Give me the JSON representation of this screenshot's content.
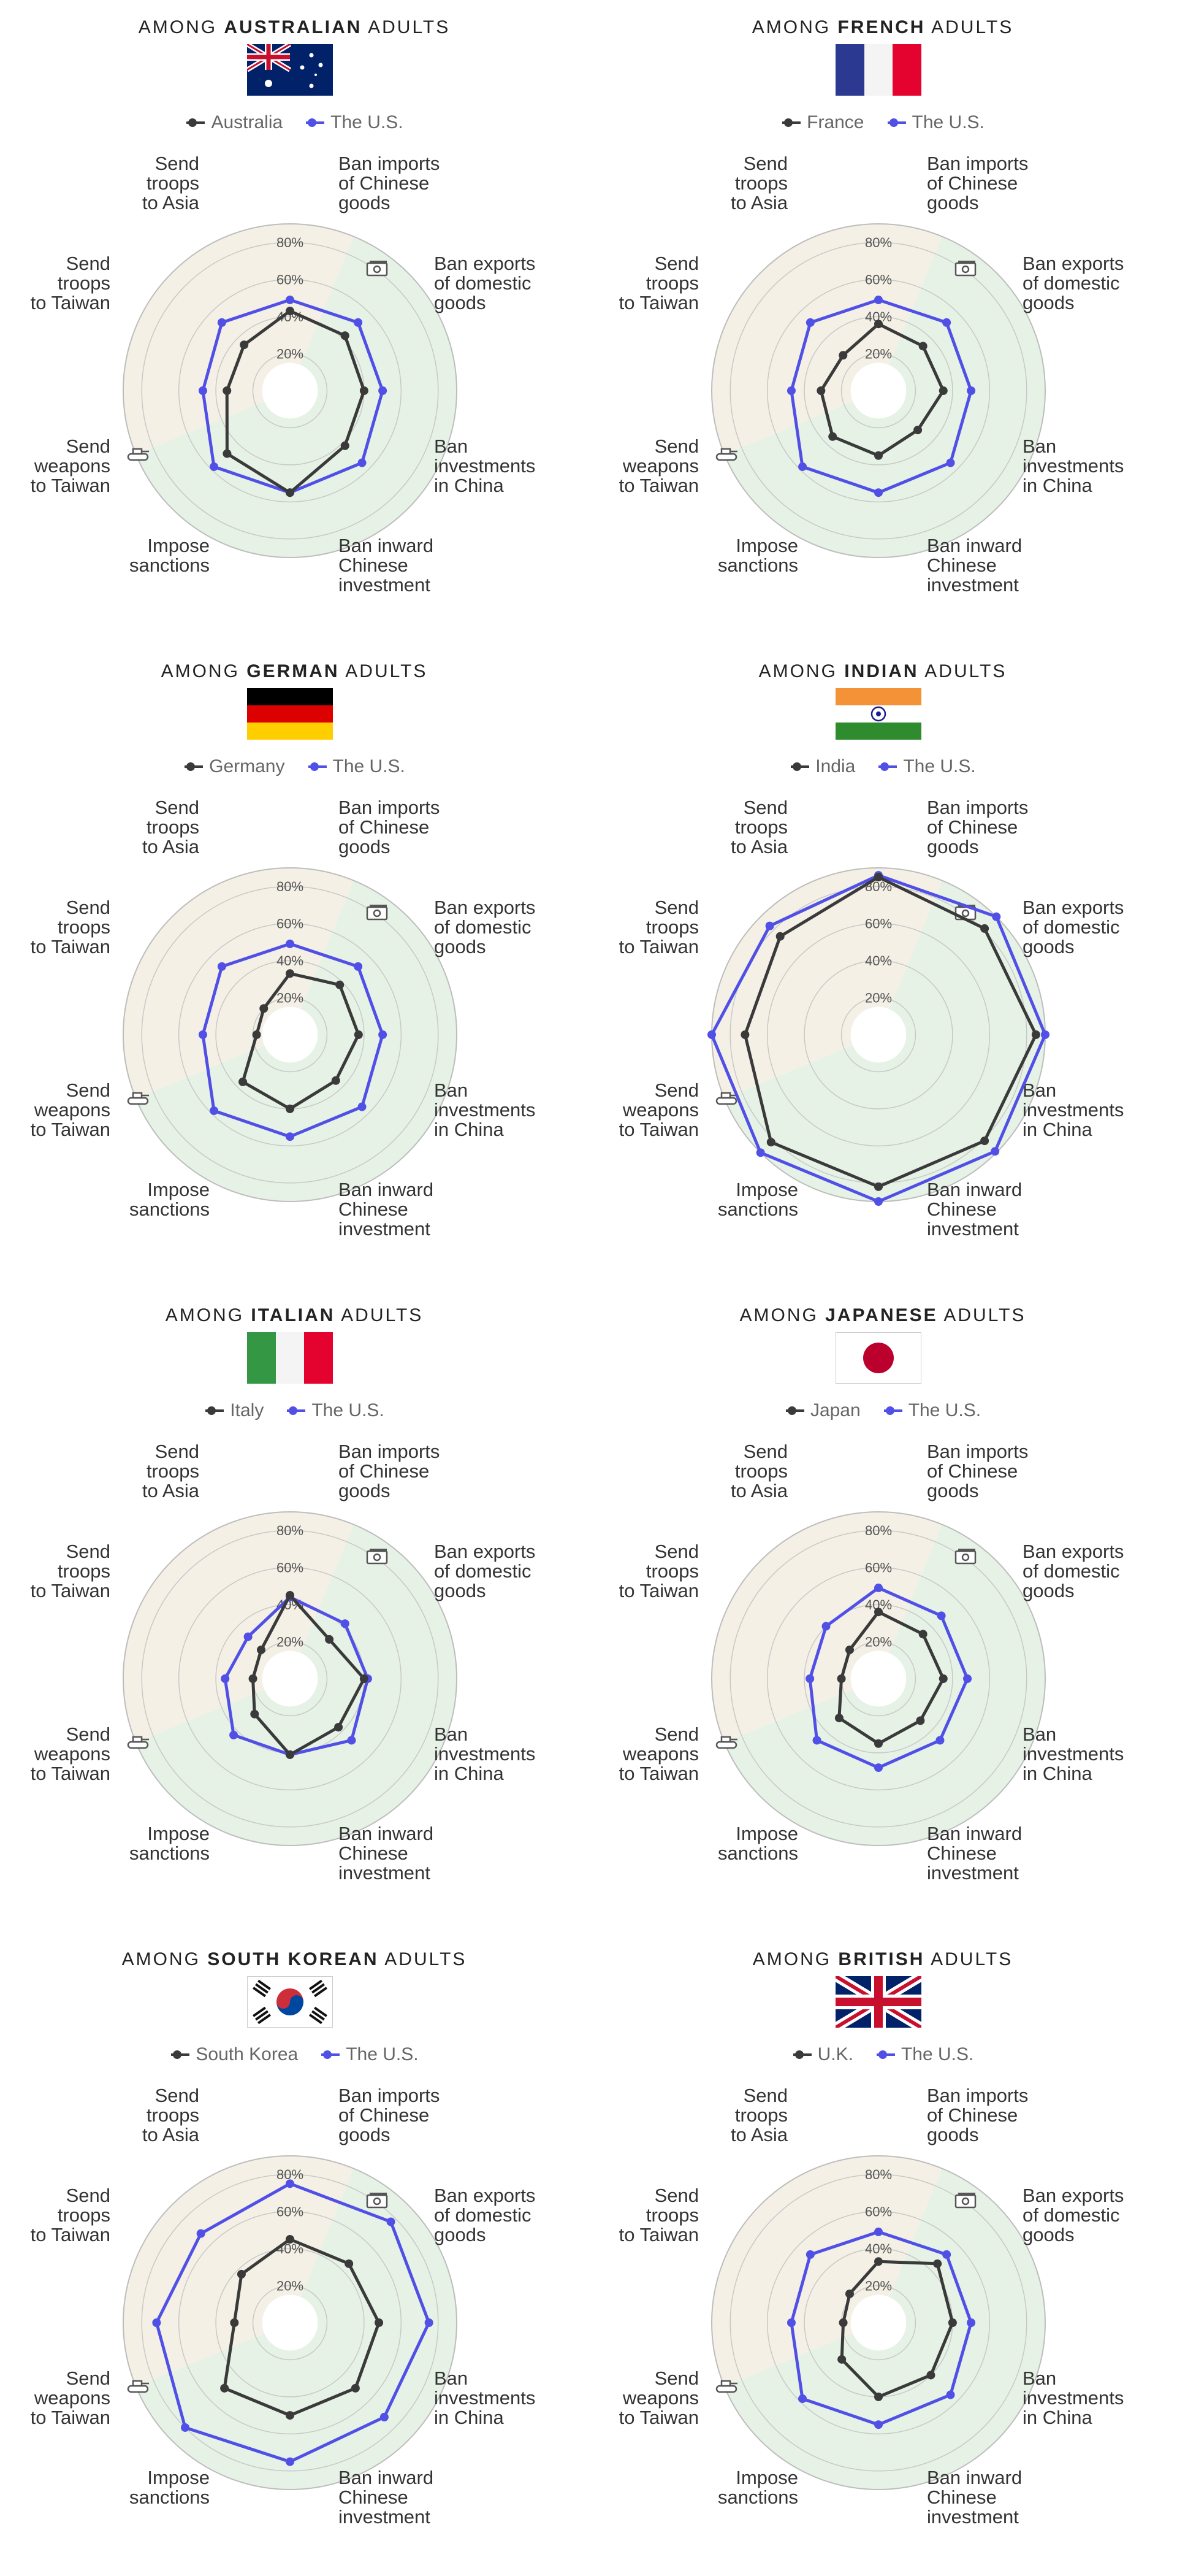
{
  "spoke_labels": [
    [
      "Ban imports",
      "of Chinese",
      "goods"
    ],
    [
      "Ban exports",
      "of domestic",
      "goods"
    ],
    [
      "Ban",
      "investments",
      "in China"
    ],
    [
      "Ban inward",
      "Chinese",
      "investment"
    ],
    [
      "Impose",
      "sanctions"
    ],
    [
      "Send",
      "weapons",
      "to Taiwan"
    ],
    [
      "Send",
      "troops",
      "to Taiwan"
    ],
    [
      "Send",
      "troops",
      "to Asia"
    ]
  ],
  "title_prefix": "AMONG",
  "title_suffix": "ADULTS",
  "colors": {
    "country": "#3a3a3a",
    "us": "#5150e6",
    "economic_sector": "#e6f2e6",
    "military_sector": "#f4f0e5",
    "grid": "#c8c8c8"
  },
  "icons": {
    "economic": "money-icon",
    "military": "tank-icon"
  },
  "chart_data": [
    {
      "type": "radar",
      "nationality": "AUSTRALIAN",
      "flag": "australia-flag",
      "categories": [
        "Ban imports of Chinese goods",
        "Ban exports of domestic goods",
        "Ban investments in China",
        "Ban inward Chinese investment",
        "Impose sanctions",
        "Send weapons to Taiwan",
        "Send troops to Taiwan",
        "Send troops to Asia"
      ],
      "ticks": [
        "20%",
        "40%",
        "60%",
        "80%"
      ],
      "rlim": [
        0,
        90
      ],
      "series": [
        {
          "name": "Australia",
          "values": [
            43,
            42,
            40,
            42,
            55,
            48,
            34,
            35
          ]
        },
        {
          "name": "The U.S.",
          "values": [
            49,
            52,
            50,
            55,
            55,
            58,
            47,
            52
          ]
        }
      ]
    },
    {
      "type": "radar",
      "nationality": "FRENCH",
      "flag": "france-flag",
      "categories": [
        "Ban imports of Chinese goods",
        "Ban exports of domestic goods",
        "Ban investments in China",
        "Ban inward Chinese investment",
        "Impose sanctions",
        "Send weapons to Taiwan",
        "Send troops to Taiwan",
        "Send troops to Asia"
      ],
      "ticks": [
        "20%",
        "40%",
        "60%",
        "80%"
      ],
      "rlim": [
        0,
        90
      ],
      "series": [
        {
          "name": "France",
          "values": [
            36,
            34,
            35,
            30,
            35,
            35,
            31,
            27
          ]
        },
        {
          "name": "The U.S.",
          "values": [
            49,
            52,
            50,
            55,
            55,
            58,
            47,
            52
          ]
        }
      ]
    },
    {
      "type": "radar",
      "nationality": "GERMAN",
      "flag": "germany-flag",
      "categories": [
        "Ban imports of Chinese goods",
        "Ban exports of domestic goods",
        "Ban investments in China",
        "Ban inward Chinese investment",
        "Impose sanctions",
        "Send weapons to Taiwan",
        "Send troops to Taiwan",
        "Send troops to Asia"
      ],
      "ticks": [
        "20%",
        "40%",
        "60%",
        "80%"
      ],
      "rlim": [
        0,
        90
      ],
      "series": [
        {
          "name": "Germany",
          "values": [
            33,
            38,
            37,
            35,
            40,
            36,
            18,
            20
          ]
        },
        {
          "name": "The U.S.",
          "values": [
            49,
            52,
            50,
            55,
            55,
            58,
            47,
            52
          ]
        }
      ]
    },
    {
      "type": "radar",
      "nationality": "INDIAN",
      "flag": "india-flag",
      "categories": [
        "Ban imports of Chinese goods",
        "Ban exports of domestic goods",
        "Ban investments in China",
        "Ban inward Chinese investment",
        "Impose sanctions",
        "Send weapons to Taiwan",
        "Send troops to Taiwan",
        "Send troops to Asia"
      ],
      "ticks": [
        "20%",
        "40%",
        "60%",
        "80%"
      ],
      "rlim": [
        0,
        90
      ],
      "series": [
        {
          "name": "India",
          "values": [
            85,
            81,
            85,
            81,
            82,
            82,
            72,
            75
          ]
        },
        {
          "name": "The U.S.",
          "values": [
            86,
            90,
            90,
            89,
            90,
            90,
            90,
            83
          ]
        }
      ]
    },
    {
      "type": "radar",
      "nationality": "ITALIAN",
      "flag": "italy-flag",
      "categories": [
        "Ban imports of Chinese goods",
        "Ban exports of domestic goods",
        "Ban investments in China",
        "Ban inward Chinese investment",
        "Impose sanctions",
        "Send weapons to Taiwan",
        "Send troops to Taiwan",
        "Send troops to Asia"
      ],
      "ticks": [
        "20%",
        "40%",
        "60%",
        "80%"
      ],
      "rlim": [
        0,
        90
      ],
      "series": [
        {
          "name": "Italy",
          "values": [
            45,
            30,
            40,
            37,
            41,
            27,
            20,
            22
          ]
        },
        {
          "name": "The U.S.",
          "values": [
            44,
            42,
            42,
            47,
            41,
            43,
            35,
            32
          ]
        }
      ]
    },
    {
      "type": "radar",
      "nationality": "JAPANESE",
      "flag": "japan-flag",
      "categories": [
        "Ban imports of Chinese goods",
        "Ban exports of domestic goods",
        "Ban investments in China",
        "Ban inward Chinese investment",
        "Impose sanctions",
        "Send weapons to Taiwan",
        "Send troops to Taiwan",
        "Send troops to Asia"
      ],
      "ticks": [
        "20%",
        "40%",
        "60%",
        "80%"
      ],
      "rlim": [
        0,
        90
      ],
      "series": [
        {
          "name": "Japan",
          "values": [
            36,
            34,
            35,
            32,
            35,
            30,
            20,
            22
          ]
        },
        {
          "name": "The U.S.",
          "values": [
            49,
            48,
            48,
            47,
            48,
            47,
            37,
            40
          ]
        }
      ]
    },
    {
      "type": "radar",
      "nationality": "SOUTH KOREAN",
      "flag": "south-korea-flag",
      "categories": [
        "Ban imports of Chinese goods",
        "Ban exports of domestic goods",
        "Ban investments in China",
        "Ban inward Chinese investment",
        "Impose sanctions",
        "Send weapons to Taiwan",
        "Send troops to Taiwan",
        "Send troops to Asia"
      ],
      "ticks": [
        "20%",
        "40%",
        "60%",
        "80%"
      ],
      "rlim": [
        0,
        90
      ],
      "series": [
        {
          "name": "South Korea",
          "values": [
            45,
            45,
            48,
            50,
            50,
            50,
            30,
            37
          ]
        },
        {
          "name": "The U.S.",
          "values": [
            75,
            77,
            75,
            72,
            75,
            80,
            72,
            68
          ]
        }
      ]
    },
    {
      "type": "radar",
      "nationality": "BRITISH",
      "flag": "uk-flag",
      "categories": [
        "Ban imports of Chinese goods",
        "Ban exports of domestic goods",
        "Ban investments in China",
        "Ban inward Chinese investment",
        "Impose sanctions",
        "Send weapons to Taiwan",
        "Send troops to Taiwan",
        "Send troops to Asia"
      ],
      "ticks": [
        "20%",
        "40%",
        "60%",
        "80%"
      ],
      "rlim": [
        0,
        90
      ],
      "series": [
        {
          "name": "U.K.",
          "values": [
            33,
            45,
            40,
            40,
            40,
            28,
            19,
            22
          ]
        },
        {
          "name": "The U.S.",
          "values": [
            49,
            52,
            50,
            55,
            55,
            58,
            47,
            52
          ]
        }
      ]
    }
  ]
}
